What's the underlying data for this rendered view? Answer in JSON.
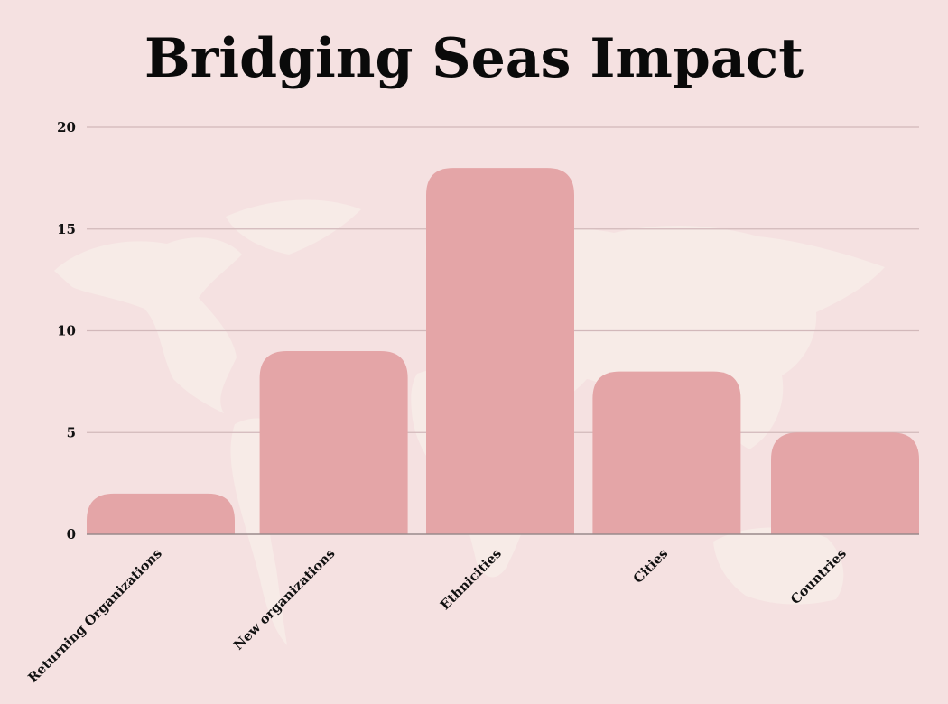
{
  "chart_data": {
    "type": "bar",
    "title": "Bridging Seas Impact",
    "xlabel": "",
    "ylabel": "",
    "categories": [
      "Returning Organizations",
      "New organizations",
      "Ethnicities",
      "Cities",
      "Countries"
    ],
    "values": [
      2,
      9,
      18,
      8,
      5
    ],
    "ylim": [
      0,
      20
    ],
    "yticks": [
      "0",
      "5",
      "10",
      "15",
      "20"
    ],
    "grid": true,
    "legend": "none",
    "colors": {
      "background": "#f5e1e1",
      "bar": "#e4a5a7",
      "map": "#f7ebe7",
      "grid": "#d2b8ba",
      "axis": "#9a8a8c"
    },
    "background_graphic": "world-map"
  }
}
